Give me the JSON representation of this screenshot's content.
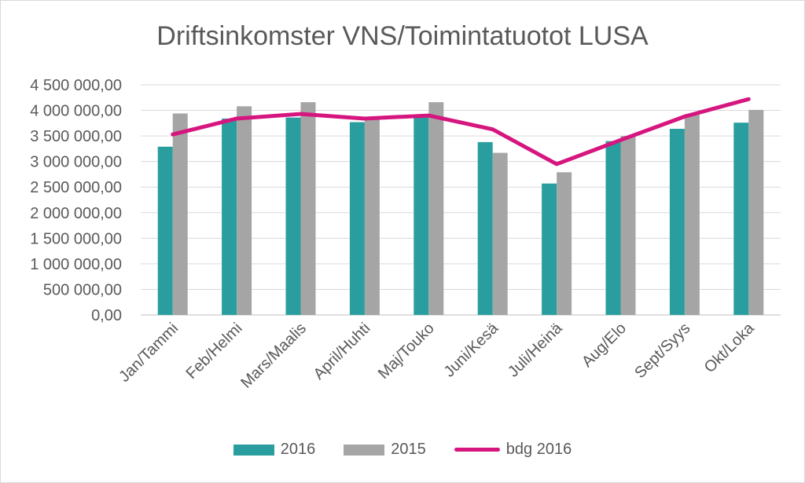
{
  "chart_data": {
    "type": "bar",
    "title": "Driftsinkomster VNS/Toimintatuotot LUSA",
    "categories": [
      "Jan/Tammi",
      "Feb/Helmi",
      "Mars/Maalis",
      "April/Huhti",
      "Maj/Touko",
      "Juni/Kesä",
      "Juli/Heinä",
      "Aug/Elo",
      "Sept/Syys",
      "Okt/Loka"
    ],
    "series": [
      {
        "name": "2016",
        "type": "bar",
        "color": "#2a9e9f",
        "values": [
          3290000,
          3840000,
          3860000,
          3770000,
          3900000,
          3380000,
          2570000,
          3400000,
          3640000,
          3760000
        ]
      },
      {
        "name": "2015",
        "type": "bar",
        "color": "#a5a5a5",
        "values": [
          3940000,
          4080000,
          4160000,
          3820000,
          4160000,
          3170000,
          2790000,
          3500000,
          3930000,
          4010000
        ]
      },
      {
        "name": "bdg 2016",
        "type": "line",
        "color": "#d6157f",
        "values": [
          3530000,
          3840000,
          3930000,
          3840000,
          3900000,
          3630000,
          2950000,
          3420000,
          3880000,
          4220000
        ]
      }
    ],
    "ylim": [
      0,
      4500000
    ],
    "yticks": [
      "0,00",
      "500 000,00",
      "1 000 000,00",
      "1 500 000,00",
      "2 000 000,00",
      "2 500 000,00",
      "3 000 000,00",
      "3 500 000,00",
      "4 000 000,00",
      "4 500 000,00"
    ],
    "xlabel": "",
    "ylabel": "",
    "grid": true,
    "legend": "bottom"
  }
}
